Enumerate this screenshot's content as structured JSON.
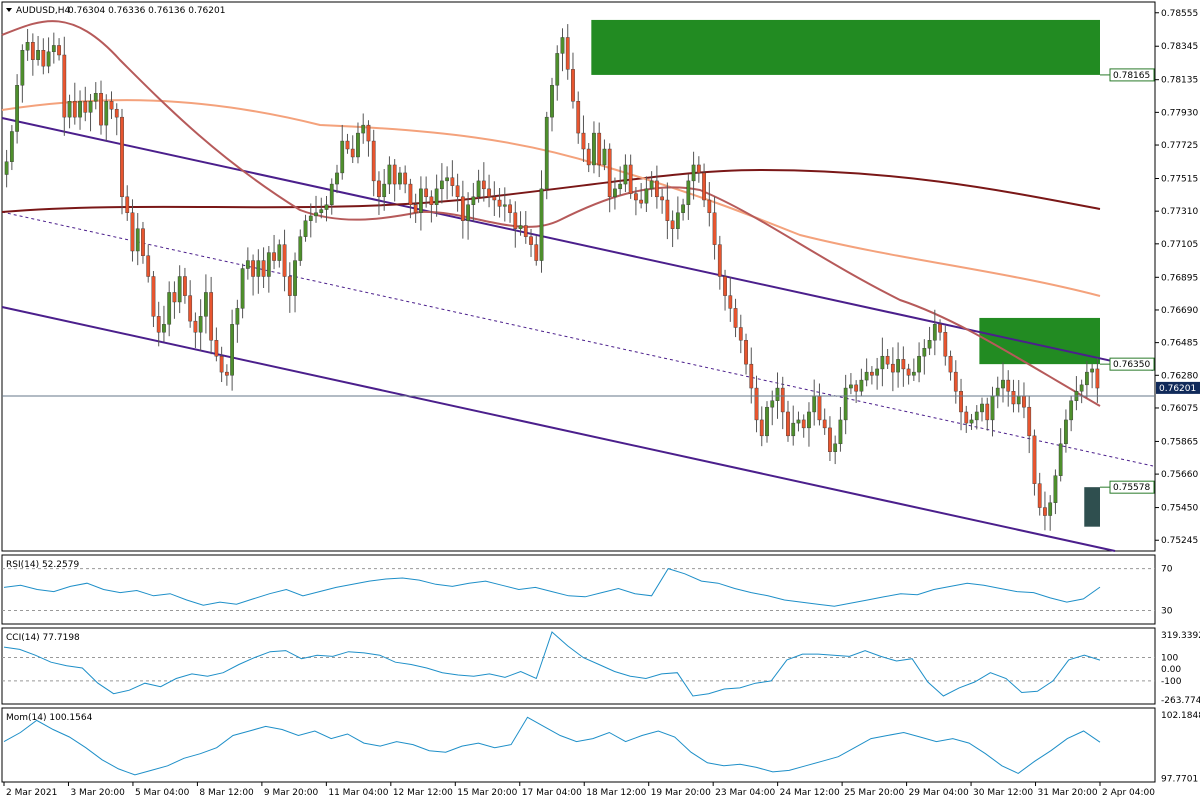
{
  "header": {
    "symbol": "AUDUSD,H4",
    "ohlc": "0.76304 0.76336 0.76136 0.76201"
  },
  "colors": {
    "bull": "#4e8f2c",
    "bear": "#e8552f",
    "ma_short": "#b65a5a",
    "ma_mid": "#f4a27c",
    "ma_long": "#7a1717",
    "channel": "#4b1f8c",
    "zone_green": "#228b22",
    "zone_dark": "#2f4f4f",
    "indicator_line": "#1e8fc8",
    "price_label_bg": "#102a5a"
  },
  "chart_data": [
    {
      "type": "candlestick",
      "panel": "price",
      "ylim": [
        0.7519,
        0.7861
      ],
      "price_ticks": [
        "0.78555",
        "0.78345",
        "0.78135",
        "0.77930",
        "0.77725",
        "0.77515",
        "0.77310",
        "0.77105",
        "0.76895",
        "0.76690",
        "0.76485",
        "0.76280",
        "0.76075",
        "0.75865",
        "0.75660",
        "0.75450",
        "0.75245"
      ],
      "x_ticks": [
        "2 Mar 2021",
        "3 Mar 20:00",
        "5 Mar 04:00",
        "8 Mar 12:00",
        "9 Mar 20:00",
        "11 Mar 04:00",
        "12 Mar 12:00",
        "15 Mar 20:00",
        "17 Mar 04:00",
        "18 Mar 12:00",
        "19 Mar 20:00",
        "23 Mar 04:00",
        "24 Mar 12:00",
        "25 Mar 20:00",
        "29 Mar 04:00",
        "30 Mar 12:00",
        "31 Mar 20:00",
        "2 Apr 04:00"
      ],
      "current_price": "0.76201",
      "levels": [
        {
          "label": "0.78165",
          "value": 0.78165
        },
        {
          "label": "0.76350",
          "value": 0.7635
        },
        {
          "label": "0.75578",
          "value": 0.75578
        }
      ],
      "zones": [
        {
          "name": "upper-supply-zone",
          "from": 0.78165,
          "to": 0.7851,
          "start": 112
        },
        {
          "name": "mid-supply-zone",
          "from": 0.7635,
          "to": 0.7664,
          "start": 186
        },
        {
          "name": "demand-zone",
          "from": 0.7533,
          "to": 0.75578,
          "start": 206
        }
      ],
      "closes": [
        0.7762,
        0.7781,
        0.781,
        0.7832,
        0.7837,
        0.7826,
        0.7832,
        0.7822,
        0.7831,
        0.7835,
        0.7829,
        0.779,
        0.78,
        0.779,
        0.78,
        0.7793,
        0.78,
        0.7805,
        0.7785,
        0.78,
        0.7795,
        0.779,
        0.774,
        0.773,
        0.7706,
        0.772,
        0.7703,
        0.769,
        0.7665,
        0.7655,
        0.766,
        0.768,
        0.7674,
        0.769,
        0.7678,
        0.7662,
        0.7655,
        0.7665,
        0.768,
        0.765,
        0.764,
        0.763,
        0.7628,
        0.766,
        0.767,
        0.7695,
        0.77,
        0.769,
        0.77,
        0.769,
        0.7705,
        0.77,
        0.771,
        0.769,
        0.7678,
        0.77,
        0.7715,
        0.7725,
        0.7728,
        0.773,
        0.7732,
        0.7735,
        0.7748,
        0.7755,
        0.7775,
        0.777,
        0.7765,
        0.778,
        0.7785,
        0.7775,
        0.775,
        0.774,
        0.7748,
        0.776,
        0.7748,
        0.7755,
        0.7748,
        0.7735,
        0.773,
        0.7745,
        0.774,
        0.7735,
        0.7745,
        0.775,
        0.7752,
        0.7747,
        0.774,
        0.7725,
        0.7735,
        0.774,
        0.775,
        0.7745,
        0.774,
        0.7738,
        0.7734,
        0.7735,
        0.773,
        0.772,
        0.7722,
        0.7715,
        0.771,
        0.77,
        0.7745,
        0.779,
        0.781,
        0.783,
        0.784,
        0.782,
        0.78,
        0.778,
        0.777,
        0.776,
        0.778,
        0.776,
        0.777,
        0.774,
        0.7745,
        0.7748,
        0.776,
        0.7742,
        0.7738,
        0.7736,
        0.7745,
        0.775,
        0.774,
        0.7738,
        0.7725,
        0.772,
        0.773,
        0.7735,
        0.775,
        0.776,
        0.7755,
        0.7738,
        0.773,
        0.771,
        0.769,
        0.7678,
        0.767,
        0.7658,
        0.765,
        0.7635,
        0.762,
        0.76,
        0.759,
        0.7608,
        0.7612,
        0.762,
        0.7605,
        0.759,
        0.7598,
        0.76,
        0.7595,
        0.7605,
        0.7615,
        0.76,
        0.7595,
        0.758,
        0.7585,
        0.76,
        0.762,
        0.7622,
        0.7618,
        0.7625,
        0.763,
        0.7628,
        0.7632,
        0.764,
        0.7635,
        0.763,
        0.7638,
        0.7632,
        0.7628,
        0.763,
        0.764,
        0.7645,
        0.765,
        0.766,
        0.7655,
        0.764,
        0.763,
        0.7618,
        0.7605,
        0.7598,
        0.76,
        0.7605,
        0.761,
        0.76,
        0.7615,
        0.762,
        0.7625,
        0.7618,
        0.761,
        0.7615,
        0.7608,
        0.759,
        0.756,
        0.7545,
        0.754,
        0.7548,
        0.7565,
        0.7585,
        0.76,
        0.7612,
        0.7618,
        0.7622,
        0.763,
        0.7632,
        0.762
      ]
    },
    {
      "type": "line",
      "panel": "indicator",
      "label": "RSI(14) 52.2579",
      "ylim": [
        18,
        82
      ],
      "ticks": [
        "70",
        "30"
      ],
      "levels": [
        70,
        30
      ],
      "values": [
        52,
        54,
        50,
        48,
        53,
        56,
        50,
        47,
        49,
        44,
        46,
        40,
        35,
        38,
        36,
        41,
        46,
        50,
        44,
        48,
        52,
        55,
        58,
        60,
        61,
        59,
        55,
        53,
        56,
        58,
        54,
        50,
        52,
        48,
        44,
        43,
        47,
        51,
        46,
        44,
        70,
        65,
        58,
        56,
        51,
        47,
        44,
        40,
        38,
        36,
        34,
        37,
        40,
        43,
        46,
        45,
        50,
        53,
        56,
        54,
        51,
        48,
        47,
        42,
        38,
        41,
        52.26
      ]
    },
    {
      "type": "line",
      "panel": "indicator",
      "label": "CCI(14) 77.7198",
      "ylim": [
        -290,
        345
      ],
      "ticks": [
        "319.3392",
        "100",
        "0.00",
        "-100",
        "-263.7745"
      ],
      "levels": [
        100,
        -100
      ],
      "values": [
        190,
        170,
        120,
        60,
        30,
        10,
        -120,
        -210,
        -180,
        -120,
        -150,
        -80,
        -40,
        -60,
        -30,
        40,
        100,
        150,
        160,
        90,
        120,
        110,
        150,
        140,
        120,
        60,
        40,
        10,
        -30,
        -50,
        -60,
        -40,
        -70,
        -20,
        -80,
        319,
        200,
        100,
        40,
        -20,
        -60,
        -80,
        -40,
        -30,
        -230,
        -210,
        -170,
        -160,
        -120,
        -100,
        80,
        130,
        130,
        120,
        110,
        160,
        110,
        70,
        90,
        -110,
        -230,
        -160,
        -110,
        -30,
        -80,
        -200,
        -190,
        -100,
        80,
        120,
        77.72
      ]
    },
    {
      "type": "line",
      "panel": "indicator",
      "label": "Mom(14) 100.1564",
      "ylim": [
        97.6,
        102.35
      ],
      "ticks": [
        "102.1848",
        "97.7701"
      ],
      "values": [
        100.2,
        100.8,
        101.6,
        101.0,
        100.5,
        99.8,
        99.0,
        98.4,
        98.0,
        98.3,
        98.6,
        99.1,
        99.4,
        99.8,
        100.6,
        100.9,
        101.2,
        101.0,
        100.6,
        100.9,
        100.4,
        100.7,
        100.1,
        99.9,
        100.2,
        100.0,
        99.6,
        99.5,
        99.9,
        100.1,
        99.8,
        100.0,
        101.8,
        101.2,
        100.6,
        100.2,
        100.4,
        100.8,
        100.2,
        100.6,
        100.9,
        100.5,
        99.5,
        98.8,
        98.6,
        98.7,
        98.5,
        98.2,
        98.3,
        98.6,
        98.9,
        99.2,
        99.8,
        100.4,
        100.6,
        100.8,
        100.5,
        100.2,
        100.4,
        100.1,
        99.4,
        98.6,
        98.1,
        98.9,
        99.6,
        100.4,
        100.9,
        100.16
      ]
    }
  ]
}
